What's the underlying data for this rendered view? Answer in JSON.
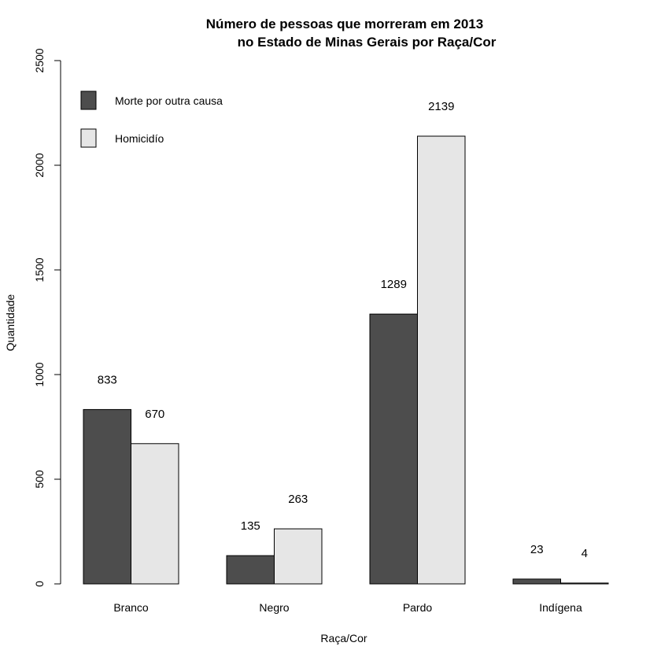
{
  "chart_data": {
    "type": "bar",
    "title_line1": "Número de pessoas que morreram em 2013",
    "title_line2": "no Estado de Minas Gerais por Raça/Cor",
    "xlabel": "Raça/Cor",
    "ylabel": "Quantidade",
    "categories": [
      "Branco",
      "Negro",
      "Pardo",
      "Indígena"
    ],
    "series": [
      {
        "name": "Morte por outra causa",
        "color": "#4d4d4d",
        "values": [
          833,
          135,
          1289,
          23
        ]
      },
      {
        "name": "Homicidío",
        "color": "#e6e6e6",
        "values": [
          670,
          263,
          2139,
          4
        ]
      }
    ],
    "ylim": [
      0,
      2500
    ],
    "yticks": [
      0,
      500,
      1000,
      1500,
      2000,
      2500
    ],
    "grid": false,
    "legend_position": "top-left"
  }
}
